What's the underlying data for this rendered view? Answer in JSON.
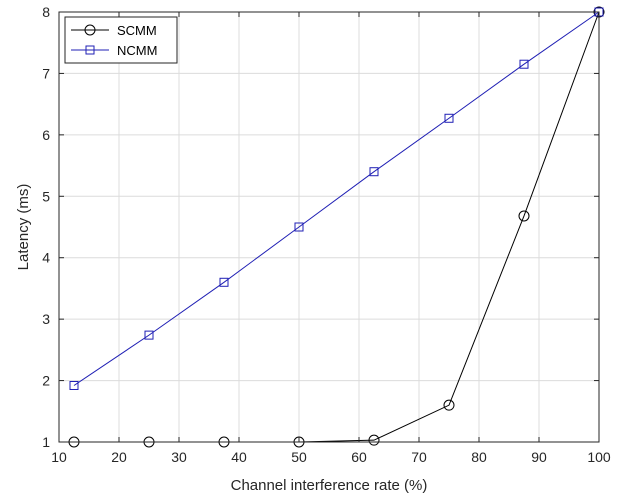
{
  "chart_data": {
    "type": "line",
    "xlabel": "Channel interference rate (%)",
    "ylabel": "Latency (ms)",
    "xlim": [
      10,
      100
    ],
    "ylim": [
      1,
      8
    ],
    "xticks": [
      10,
      20,
      30,
      40,
      50,
      60,
      70,
      80,
      90,
      100
    ],
    "yticks": [
      1,
      2,
      3,
      4,
      5,
      6,
      7,
      8
    ],
    "grid": true,
    "legend_position": "top-left",
    "x": [
      12.5,
      25,
      37.5,
      50,
      62.5,
      75,
      87.5,
      100
    ],
    "series": [
      {
        "name": "SCMM",
        "marker": "circle",
        "color": "#000000",
        "values": [
          1.0,
          1.0,
          1.0,
          1.0,
          1.03,
          1.6,
          4.68,
          8.0
        ]
      },
      {
        "name": "NCMM",
        "marker": "square",
        "color": "#1f1fb4",
        "values": [
          1.92,
          2.74,
          3.6,
          4.5,
          5.4,
          6.27,
          7.15,
          8.0
        ]
      }
    ]
  }
}
